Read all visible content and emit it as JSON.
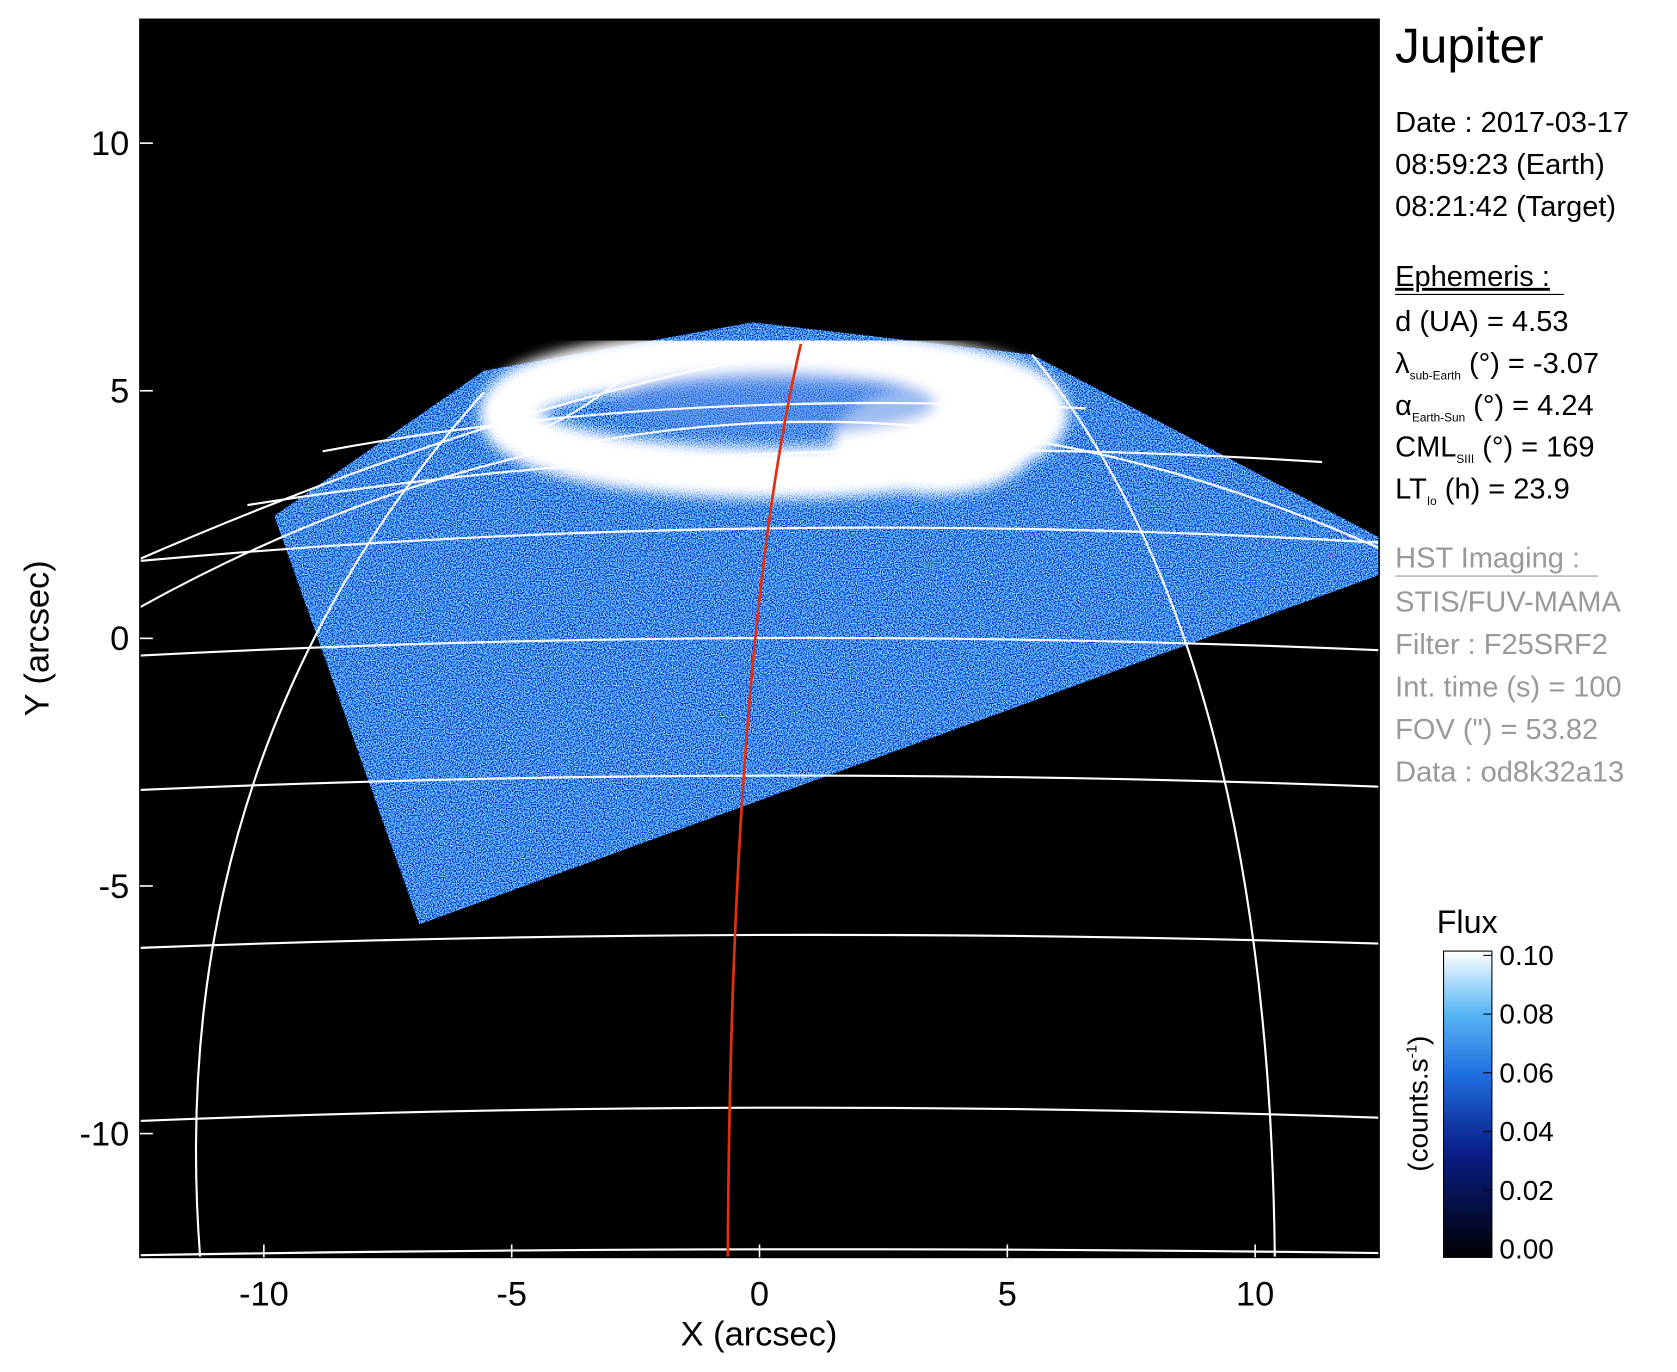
{
  "chart_data": {
    "type": "image",
    "xlabel": "X (arcsec)",
    "ylabel": "Y (arcsec)",
    "xlim": [
      -12.5,
      12.5
    ],
    "ylim": [
      -12.5,
      12.5
    ],
    "xticks": [
      -10,
      -5,
      0,
      5,
      10
    ],
    "yticks": [
      -10,
      -5,
      0,
      5,
      10
    ],
    "colorbar": {
      "title": "Flux",
      "label": "(counts.s",
      "label_sup": "-1",
      "label_end": ")",
      "lim": [
        0,
        0.1
      ],
      "ticks": [
        {
          "value": 0,
          "label": "0.00"
        },
        {
          "value": 0.02,
          "label": "0.02"
        },
        {
          "value": 0.04,
          "label": "0.04"
        },
        {
          "value": 0.06,
          "label": "0.06"
        },
        {
          "value": 0.08,
          "label": "0.08"
        },
        {
          "value": 0.1,
          "label": "0.10"
        }
      ]
    },
    "info": {
      "title": "Jupiter",
      "lines": [
        "Date : 2017-03-17",
        "08:59:23 (Earth)",
        "08:21:42 (Target)"
      ],
      "ephemeris_title": "Ephemeris :",
      "ephemeris": [
        {
          "label": "d (UA)    = 4.53"
        },
        {
          "label": "λ",
          "sub": "sub-Earth",
          "rest": " (°) = -3.07"
        },
        {
          "label": "α",
          "sub": "Earth-Sun",
          "rest": " (°) = 4.24"
        },
        {
          "label": "CML",
          "sub": "SIII",
          "rest": " (°) = 169"
        },
        {
          "label": "LT",
          "sub": "Io",
          "rest": " (h) = 23.9"
        }
      ],
      "imaging_title": "HST Imaging :",
      "imaging": [
        "STIS/FUV-MAMA",
        "Filter : F25SRF2",
        "Int. time (s) = 100",
        "FOV (\") = 53.82",
        "Data : od8k32a13"
      ]
    }
  }
}
